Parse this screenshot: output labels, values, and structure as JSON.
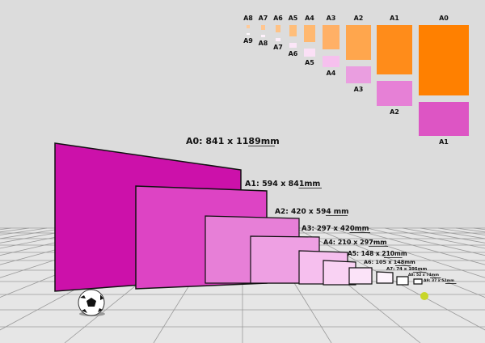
{
  "colors": {
    "background": "#dcdcdc",
    "floor": "#e6e6e6",
    "grid": "#9a9a9a",
    "legend_orange": "#ff8000",
    "legend_pink": "#dd55c4"
  },
  "legend": {
    "top_row": [
      {
        "label": "A0",
        "color": "#ff8000"
      },
      {
        "label": "A1",
        "color": "#ff8c1a"
      },
      {
        "label": "A2",
        "color": "#ffa64d"
      },
      {
        "label": "A3",
        "color": "#ffb066"
      },
      {
        "label": "A4",
        "color": "#ffb870"
      },
      {
        "label": "A5",
        "color": "#ffbe7a"
      },
      {
        "label": "A6",
        "color": "#ffc285"
      },
      {
        "label": "A7",
        "color": "#ffc690"
      },
      {
        "label": "A8",
        "color": "#ffca99"
      }
    ],
    "bottom_row": [
      {
        "label": "A1",
        "color": "#dd55c4"
      },
      {
        "label": "A2",
        "color": "#e680d6"
      },
      {
        "label": "A3",
        "color": "#ea9ee0"
      },
      {
        "label": "A4",
        "color": "#f6c0ee"
      },
      {
        "label": "A5",
        "color": "#fbe0f6"
      },
      {
        "label": "A6",
        "color": "#fce6f8"
      },
      {
        "label": "A7",
        "color": "#fdeefa"
      },
      {
        "label": "A8",
        "color": "#fff2fc"
      },
      {
        "label": "A9",
        "color": "#fff8fd"
      }
    ]
  },
  "sheets": [
    {
      "label": "A0: 841 x 1189mm",
      "color": "#cc11aa"
    },
    {
      "label": "A1: 594 x 841mm",
      "color": "#dd44c4"
    },
    {
      "label": "A2: 420 x 594 mm",
      "color": "#e77fd7"
    },
    {
      "label": "A3: 297 x 420mm",
      "color": "#eea0e3"
    },
    {
      "label": "A4: 210 x 297mm",
      "color": "#f6bfee"
    },
    {
      "label": "A5: 148 x 210mm",
      "color": "#f9d2f3"
    },
    {
      "label": "A6: 105 x 148mm",
      "color": "#fbe3f8"
    },
    {
      "label": "A7: 74 x 105mm",
      "color": "#fdf3fc"
    },
    {
      "label": "A8: 52 x 74mm",
      "color": "#ffffff"
    },
    {
      "label": "A9: 37 x 52mm",
      "color": "#ffffff"
    }
  ]
}
